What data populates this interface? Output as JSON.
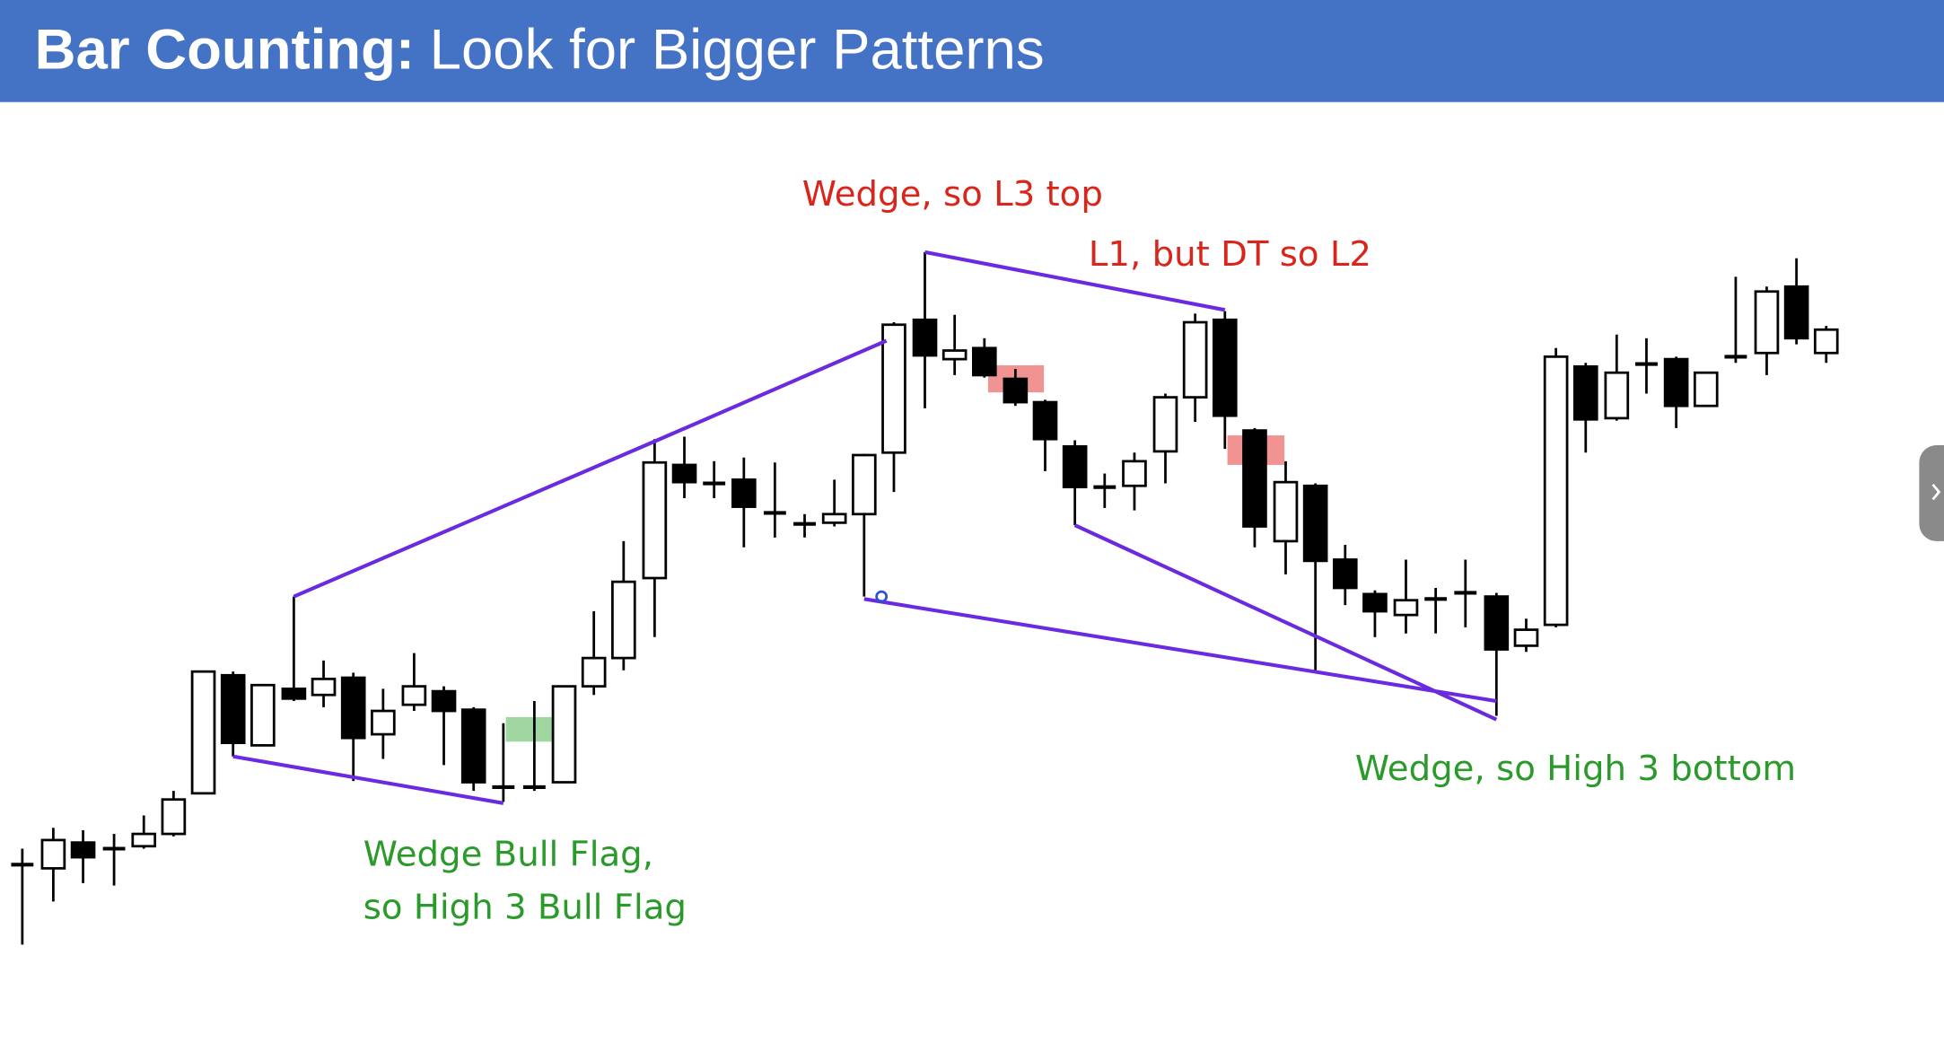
{
  "header": {
    "title_bold": "Bar Counting:",
    "title_rest": "Look for Bigger Patterns"
  },
  "annotations": {
    "wedge_top": "Wedge, so L3 top",
    "l1_l2": "L1, but DT so L2",
    "bull_flag_line1": "Wedge Bull Flag,",
    "bull_flag_line2": "so High 3 Bull Flag",
    "wedge_bottom": "Wedge, so High 3 bottom"
  }
}
